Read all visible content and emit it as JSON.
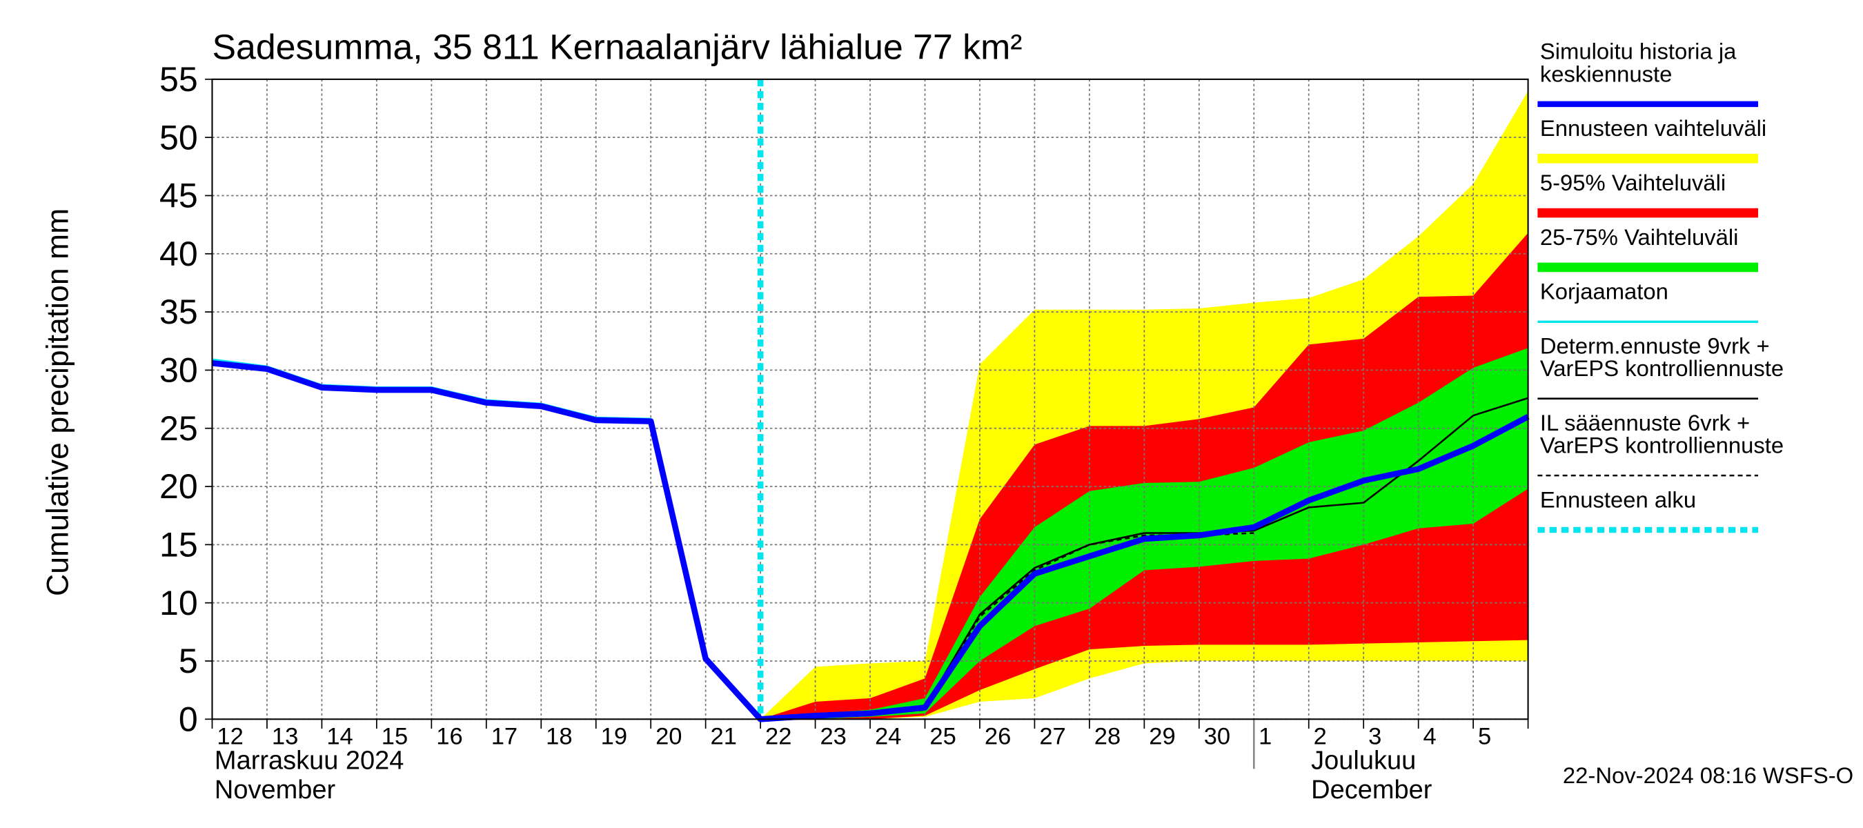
{
  "chart_data": {
    "type": "line",
    "title": "Sadesumma, 35 811 Kernaalanjärv lähialue 77 km²",
    "y_label": "Cumulative precipitation   mm",
    "month_labels": {
      "first": [
        "Marraskuu 2024",
        "November"
      ],
      "second": [
        "Joulukuu",
        "December"
      ]
    },
    "timestamp": "22-Nov-2024 08:16 WSFS-O",
    "categories": [
      "12",
      "13",
      "14",
      "15",
      "16",
      "17",
      "18",
      "19",
      "20",
      "21",
      "22",
      "23",
      "24",
      "25",
      "26",
      "27",
      "28",
      "29",
      "30",
      "1",
      "2",
      "3",
      "4",
      "5",
      null
    ],
    "ylim": [
      0,
      55
    ],
    "yticks": [
      0,
      5,
      10,
      15,
      20,
      25,
      30,
      35,
      40,
      45,
      50,
      55
    ],
    "grid": true,
    "series": [
      {
        "kind": "line",
        "name": [
          "Simuloitu historia ja",
          "keskiennuste"
        ],
        "color": "#0000ff",
        "width": 5,
        "values": [
          30.6,
          30.1,
          28.5,
          28.3,
          28.3,
          27.2,
          26.9,
          25.7,
          25.6,
          5.2,
          0,
          0.3,
          0.5,
          1.0,
          8.0,
          12.5,
          14.0,
          15.5,
          15.8,
          16.5,
          18.8,
          20.5,
          21.5,
          23.5,
          26.0
        ]
      },
      {
        "kind": "band",
        "name": [
          "Ennusteen vaihteluväli"
        ],
        "color": "#ffff00",
        "upper": [
          null,
          null,
          null,
          null,
          null,
          null,
          null,
          null,
          null,
          null,
          0,
          4.5,
          4.8,
          5,
          30.5,
          35.2,
          35.2,
          35.2,
          35.3,
          35.8,
          36.2,
          37.8,
          41.5,
          46,
          54
        ],
        "lower": [
          null,
          null,
          null,
          null,
          null,
          null,
          null,
          null,
          null,
          null,
          0,
          0,
          0,
          0.2,
          1.5,
          1.8,
          3.5,
          4.8,
          5,
          5,
          5,
          5,
          5,
          5,
          5
        ]
      },
      {
        "kind": "band",
        "name": [
          "5-95% Vaihteluväli"
        ],
        "color": "#ff0000",
        "upper": [
          null,
          null,
          null,
          null,
          null,
          null,
          null,
          null,
          null,
          null,
          0,
          1.5,
          1.8,
          3.5,
          17.2,
          23.6,
          25.2,
          25.2,
          25.8,
          26.8,
          32.2,
          32.7,
          36.3,
          36.4,
          41.8
        ],
        "lower": [
          null,
          null,
          null,
          null,
          null,
          null,
          null,
          null,
          null,
          null,
          0,
          0,
          0,
          0.3,
          2.5,
          4.3,
          6,
          6.3,
          6.4,
          6.4,
          6.4,
          6.5,
          6.6,
          6.7,
          6.8
        ]
      },
      {
        "kind": "band",
        "name": [
          "25-75% Vaihteluväli"
        ],
        "color": "#00ee00",
        "upper": [
          null,
          null,
          null,
          null,
          null,
          null,
          null,
          null,
          null,
          null,
          0,
          0.5,
          0.8,
          1.8,
          10.5,
          16.5,
          19.6,
          20.3,
          20.4,
          21.6,
          23.8,
          24.8,
          27.2,
          30.2,
          31.9
        ],
        "lower": [
          null,
          null,
          null,
          null,
          null,
          null,
          null,
          null,
          null,
          null,
          0,
          0,
          0.2,
          0.5,
          5,
          8,
          9.5,
          12.8,
          13.1,
          13.6,
          13.8,
          15,
          16.4,
          16.8,
          19.8
        ]
      },
      {
        "kind": "line",
        "name": [
          "Korjaamaton"
        ],
        "color": "#00e5ee",
        "width": 2,
        "values": [
          30.9,
          30.3,
          28.7,
          28.5,
          28.5,
          27.4,
          27.1,
          25.9,
          25.8,
          5.3,
          0,
          null,
          null,
          null,
          null,
          null,
          null,
          null,
          null,
          null,
          null,
          null,
          null,
          null,
          null
        ]
      },
      {
        "kind": "line",
        "name": [
          "Determ.ennuste 9vrk +",
          "VarEPS kontrolliennuste"
        ],
        "color": "#000000",
        "width": 1.5,
        "values": [
          null,
          null,
          null,
          null,
          null,
          null,
          null,
          null,
          null,
          null,
          0,
          0.3,
          0.5,
          1,
          9,
          13,
          15,
          16,
          16,
          16.2,
          18.2,
          18.6,
          22.2,
          26.1,
          27.6
        ]
      },
      {
        "kind": "line",
        "name": [
          "IL sääennuste 6vrk  +",
          " VarEPS kontrolliennuste"
        ],
        "color": "#000000",
        "width": 1.5,
        "dash": true,
        "values": [
          null,
          null,
          null,
          null,
          null,
          null,
          null,
          null,
          null,
          null,
          0,
          0.2,
          0.4,
          0.8,
          8.8,
          12.8,
          15,
          15.8,
          15.8,
          16.0,
          null,
          null,
          null,
          null,
          null
        ]
      },
      {
        "kind": "vline",
        "name": [
          "Ennusteen alku"
        ],
        "color": "#00e5ee",
        "width": 5,
        "dash": true,
        "category": "22"
      }
    ]
  }
}
